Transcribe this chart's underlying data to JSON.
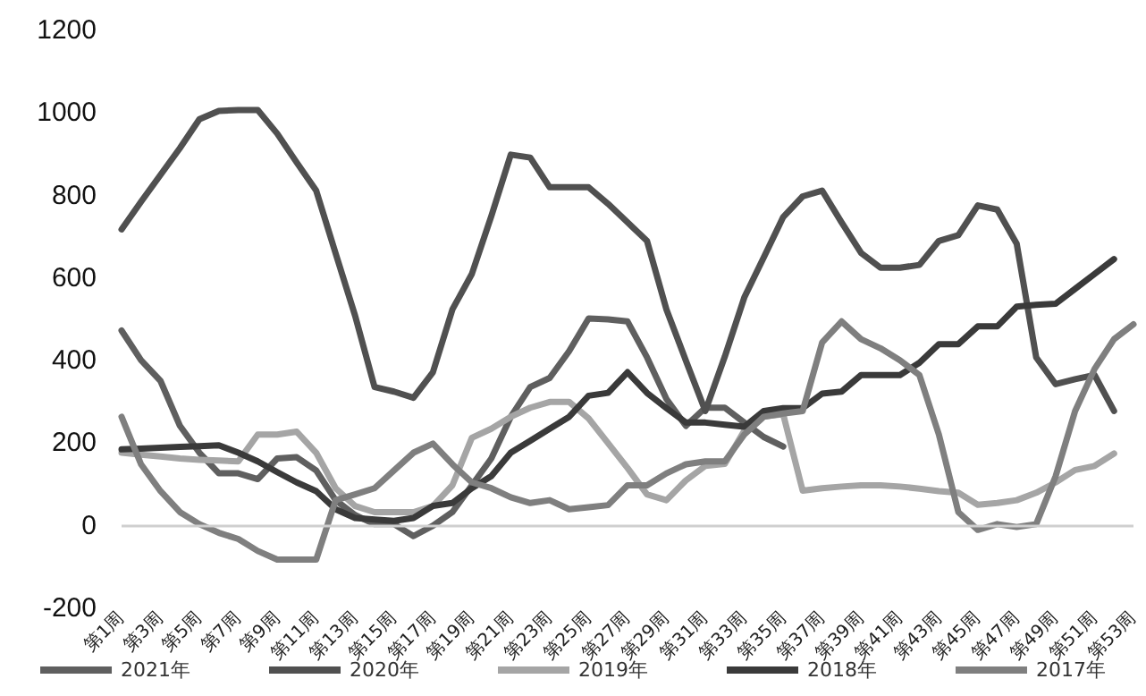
{
  "chart_data": {
    "type": "line",
    "categories": [
      "第1周",
      null,
      "第3周",
      null,
      "第5周",
      null,
      "第7周",
      null,
      "第9周",
      null,
      "第11周",
      null,
      "第13周",
      null,
      "第15周",
      null,
      "第17周",
      null,
      "第19周",
      null,
      "第21周",
      null,
      "第23周",
      null,
      "第25周",
      null,
      "第27周",
      null,
      "第29周",
      null,
      "第31周",
      null,
      "第33周",
      null,
      "第35周",
      null,
      "第37周",
      null,
      "第39周",
      null,
      "第41周",
      null,
      "第43周",
      null,
      "第45周",
      null,
      "第47周",
      null,
      "第49周",
      null,
      "第51周",
      null,
      "第53周"
    ],
    "series": [
      {
        "name": "2021年",
        "color": "#5f5f5f",
        "values": [
          473,
          401,
          351,
          242,
          177,
          127,
          127,
          113,
          163,
          166,
          134,
          62,
          26,
          4,
          4,
          -25,
          0,
          33,
          98,
          163,
          264,
          336,
          358,
          423,
          502,
          500,
          495,
          408,
          307,
          242,
          286,
          286,
          250,
          215,
          192,
          null,
          null,
          null,
          null,
          null,
          null,
          null,
          null,
          null,
          null,
          null,
          null,
          null,
          null,
          null,
          null,
          null,
          null
        ]
      },
      {
        "name": "2020年",
        "color": "#505050",
        "values": [
          718,
          785,
          850,
          915,
          985,
          1005,
          1007,
          1007,
          950,
          880,
          812,
          660,
          509,
          336,
          325,
          310,
          372,
          524,
          610,
          750,
          899,
          892,
          820,
          820,
          820,
          780,
          735,
          690,
          524,
          400,
          278,
          410,
          553,
          650,
          748,
          798,
          812,
          735,
          661,
          625,
          625,
          632,
          690,
          704,
          776,
          766,
          683,
          408,
          343,
          355,
          365,
          278,
          null
        ]
      },
      {
        "name": "2019年",
        "color": "#a5a5a5",
        "values": [
          177,
          172,
          168,
          163,
          160,
          158,
          156,
          221,
          221,
          228,
          177,
          91,
          48,
          33,
          33,
          33,
          48,
          98,
          213,
          235,
          264,
          286,
          300,
          300,
          260,
          200,
          140,
          76,
          62,
          110,
          145,
          150,
          230,
          265,
          270,
          85,
          91,
          95,
          98,
          98,
          95,
          90,
          84,
          80,
          51,
          55,
          62,
          80,
          105,
          135,
          145,
          175,
          null
        ]
      },
      {
        "name": "2018年",
        "color": "#3a3a3a",
        "values": [
          185,
          187,
          189,
          191,
          193,
          195,
          177,
          156,
          130,
          105,
          84,
          40,
          19,
          15,
          12,
          19,
          48,
          55,
          91,
          120,
          177,
          206,
          235,
          264,
          315,
          322,
          372,
          322,
          285,
          250,
          250,
          245,
          240,
          278,
          285,
          285,
          320,
          325,
          365,
          365,
          365,
          395,
          440,
          440,
          483,
          483,
          531,
          535,
          538,
          574,
          610,
          646,
          null
        ]
      },
      {
        "name": "2017年",
        "color": "#7f7f7f",
        "values": [
          264,
          149,
          84,
          33,
          4,
          -17,
          -32,
          -61,
          -82,
          -82,
          -82,
          62,
          76,
          91,
          134,
          177,
          199,
          149,
          105,
          91,
          69,
          55,
          62,
          40,
          45,
          50,
          98,
          98,
          127,
          149,
          156,
          156,
          221,
          264,
          272,
          278,
          444,
          495,
          452,
          430,
          401,
          365,
          221,
          33,
          -10,
          4,
          -3,
          4,
          120,
          278,
          380,
          452,
          488
        ]
      }
    ],
    "ylim": [
      -200,
      1200
    ],
    "yticks": [
      -200,
      0,
      200,
      400,
      600,
      800,
      1000,
      1200
    ],
    "ref_lines": [
      {
        "axis": "y",
        "value": 0,
        "color": "#cfcfcf"
      }
    ],
    "grid": false,
    "legend": "bottom",
    "line_style": "solid",
    "marker": "none"
  }
}
